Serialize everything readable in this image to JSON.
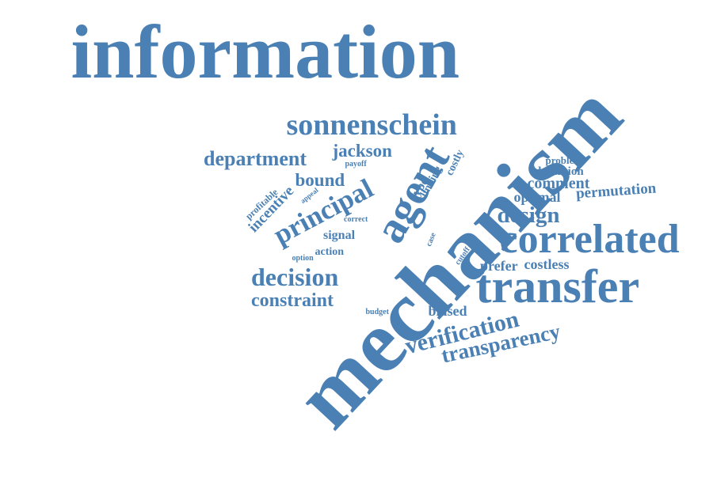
{
  "colors": {
    "word": "#4a80b4",
    "background": "#ffffff"
  },
  "words": [
    {
      "text": "information"
    },
    {
      "text": "mechanism"
    },
    {
      "text": "sonnenschein"
    },
    {
      "text": "department"
    },
    {
      "text": "jackson"
    },
    {
      "text": "payoff"
    },
    {
      "text": "bound"
    },
    {
      "text": "incentive"
    },
    {
      "text": "principal"
    },
    {
      "text": "agent"
    },
    {
      "text": "linking"
    },
    {
      "text": "costly"
    },
    {
      "text": "type"
    },
    {
      "text": "profitable"
    },
    {
      "text": "appeal"
    },
    {
      "text": "correct"
    },
    {
      "text": "signal"
    },
    {
      "text": "action"
    },
    {
      "text": "option"
    },
    {
      "text": "case"
    },
    {
      "text": "cutoff"
    },
    {
      "text": "problem"
    },
    {
      "text": "definition"
    },
    {
      "text": "comment"
    },
    {
      "text": "optimal"
    },
    {
      "text": "permutation"
    },
    {
      "text": "design"
    },
    {
      "text": "correlated"
    },
    {
      "text": "prefer"
    },
    {
      "text": "costless"
    },
    {
      "text": "decision"
    },
    {
      "text": "transfer"
    },
    {
      "text": "constraint"
    },
    {
      "text": "budget"
    },
    {
      "text": "biased"
    },
    {
      "text": "verification"
    },
    {
      "text": "transparency"
    }
  ]
}
